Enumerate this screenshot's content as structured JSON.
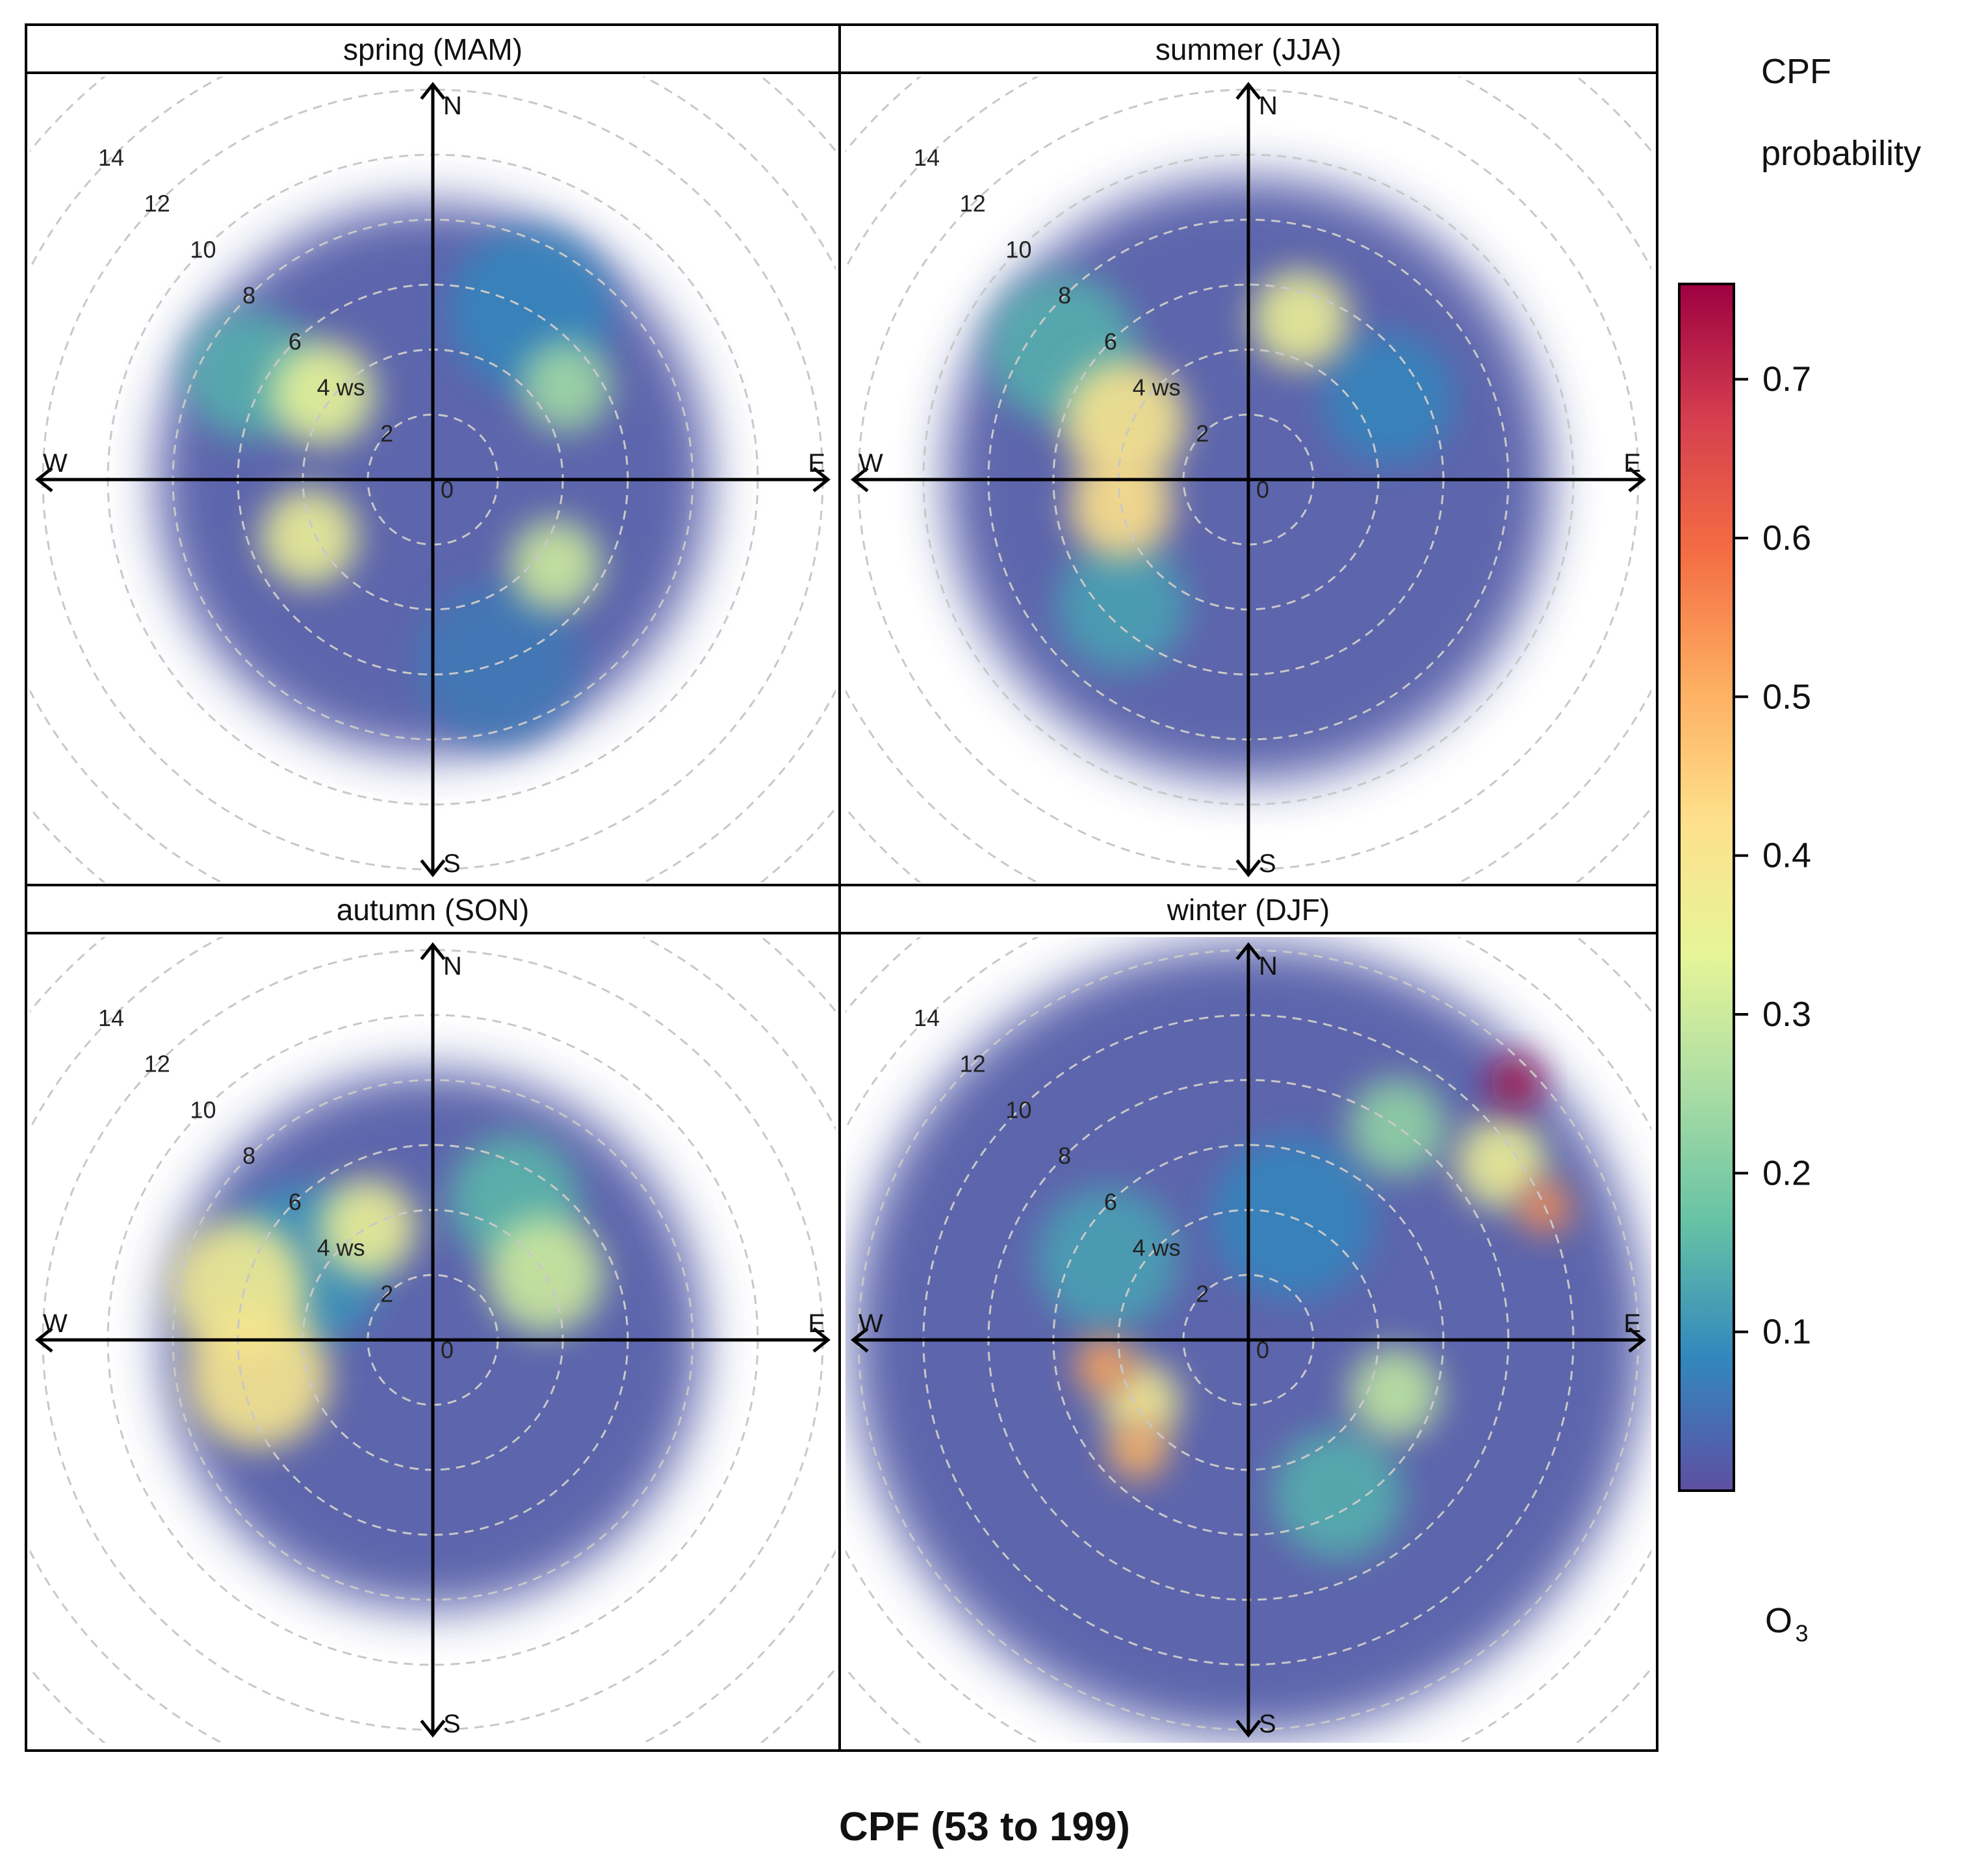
{
  "chart_data": {
    "type": "heatmap",
    "subtype": "polar-plot",
    "title": "",
    "xlabel": "CPF (53 to 199)",
    "legend": {
      "title_line1": "CPF",
      "title_line2": "probability",
      "pollutant_base": "O",
      "pollutant_sub": "3",
      "ticks": [
        "0.1",
        "0.2",
        "0.3",
        "0.4",
        "0.5",
        "0.6",
        "0.7"
      ],
      "range": [
        0,
        0.76
      ],
      "colors": [
        "#5e4fa2",
        "#3288bd",
        "#66c2a5",
        "#abdda4",
        "#e6f598",
        "#fee08b",
        "#fdae61",
        "#f46d43",
        "#d53e4f",
        "#9e0142"
      ],
      "position": "right"
    },
    "radial_axis": {
      "variable": "ws",
      "ticks": [
        "0",
        "2",
        "4 ws",
        "6",
        "8",
        "10",
        "12",
        "14"
      ],
      "max": 16
    },
    "directions": [
      "N",
      "E",
      "S",
      "W"
    ],
    "panels": [
      {
        "title": "spring (MAM)",
        "regions": [
          {
            "angle": 308,
            "ws": 4.3,
            "spread": 1.6,
            "value": 0.34
          },
          {
            "angle": 245,
            "ws": 4.2,
            "spread": 1.5,
            "value": 0.36
          },
          {
            "angle": 125,
            "ws": 4.6,
            "spread": 1.4,
            "value": 0.3
          },
          {
            "angle": 55,
            "ws": 5.0,
            "spread": 1.4,
            "value": 0.24
          },
          {
            "angle": 300,
            "ws": 6.5,
            "spread": 2.0,
            "value": 0.14
          },
          {
            "angle": 30,
            "ws": 6.0,
            "spread": 2.5,
            "value": 0.08
          },
          {
            "angle": 160,
            "ws": 6.0,
            "spread": 2.5,
            "value": 0.06
          }
        ]
      },
      {
        "title": "summer (JJA)",
        "regions": [
          {
            "angle": 295,
            "ws": 4.2,
            "spread": 1.9,
            "value": 0.4
          },
          {
            "angle": 258,
            "ws": 4.0,
            "spread": 1.6,
            "value": 0.42
          },
          {
            "angle": 18,
            "ws": 5.2,
            "spread": 1.5,
            "value": 0.36
          },
          {
            "angle": 305,
            "ws": 7.0,
            "spread": 2.3,
            "value": 0.14
          },
          {
            "angle": 225,
            "ws": 5.5,
            "spread": 2.0,
            "value": 0.12
          },
          {
            "angle": 60,
            "ws": 5.0,
            "spread": 2.0,
            "value": 0.08
          }
        ]
      },
      {
        "title": "autumn (SON)",
        "regions": [
          {
            "angle": 285,
            "ws": 6.2,
            "spread": 2.1,
            "value": 0.38
          },
          {
            "angle": 258,
            "ws": 5.5,
            "spread": 2.2,
            "value": 0.4
          },
          {
            "angle": 330,
            "ws": 4.0,
            "spread": 1.5,
            "value": 0.36
          },
          {
            "angle": 60,
            "ws": 4.0,
            "spread": 1.8,
            "value": 0.3
          },
          {
            "angle": 30,
            "ws": 5.0,
            "spread": 2.0,
            "value": 0.15
          },
          {
            "angle": 300,
            "ws": 4.6,
            "spread": 2.5,
            "value": 0.1
          }
        ]
      },
      {
        "title": "winter (DJF)",
        "regions": [
          {
            "angle": 46,
            "ws": 11.4,
            "spread": 0.8,
            "value": 0.75
          },
          {
            "angle": 66,
            "ws": 10.0,
            "spread": 0.8,
            "value": 0.55
          },
          {
            "angle": 260,
            "ws": 4.5,
            "spread": 0.9,
            "value": 0.52
          },
          {
            "angle": 225,
            "ws": 4.8,
            "spread": 0.9,
            "value": 0.5
          },
          {
            "angle": 240,
            "ws": 3.8,
            "spread": 1.2,
            "value": 0.38
          },
          {
            "angle": 55,
            "ws": 9.5,
            "spread": 1.4,
            "value": 0.36
          },
          {
            "angle": 110,
            "ws": 4.8,
            "spread": 1.4,
            "value": 0.28
          },
          {
            "angle": 35,
            "ws": 8.0,
            "spread": 1.5,
            "value": 0.22
          },
          {
            "angle": 150,
            "ws": 5.5,
            "spread": 2.0,
            "value": 0.14
          },
          {
            "angle": 300,
            "ws": 5.0,
            "spread": 2.2,
            "value": 0.12
          },
          {
            "angle": 20,
            "ws": 4.0,
            "spread": 2.5,
            "value": 0.08
          }
        ]
      }
    ]
  }
}
